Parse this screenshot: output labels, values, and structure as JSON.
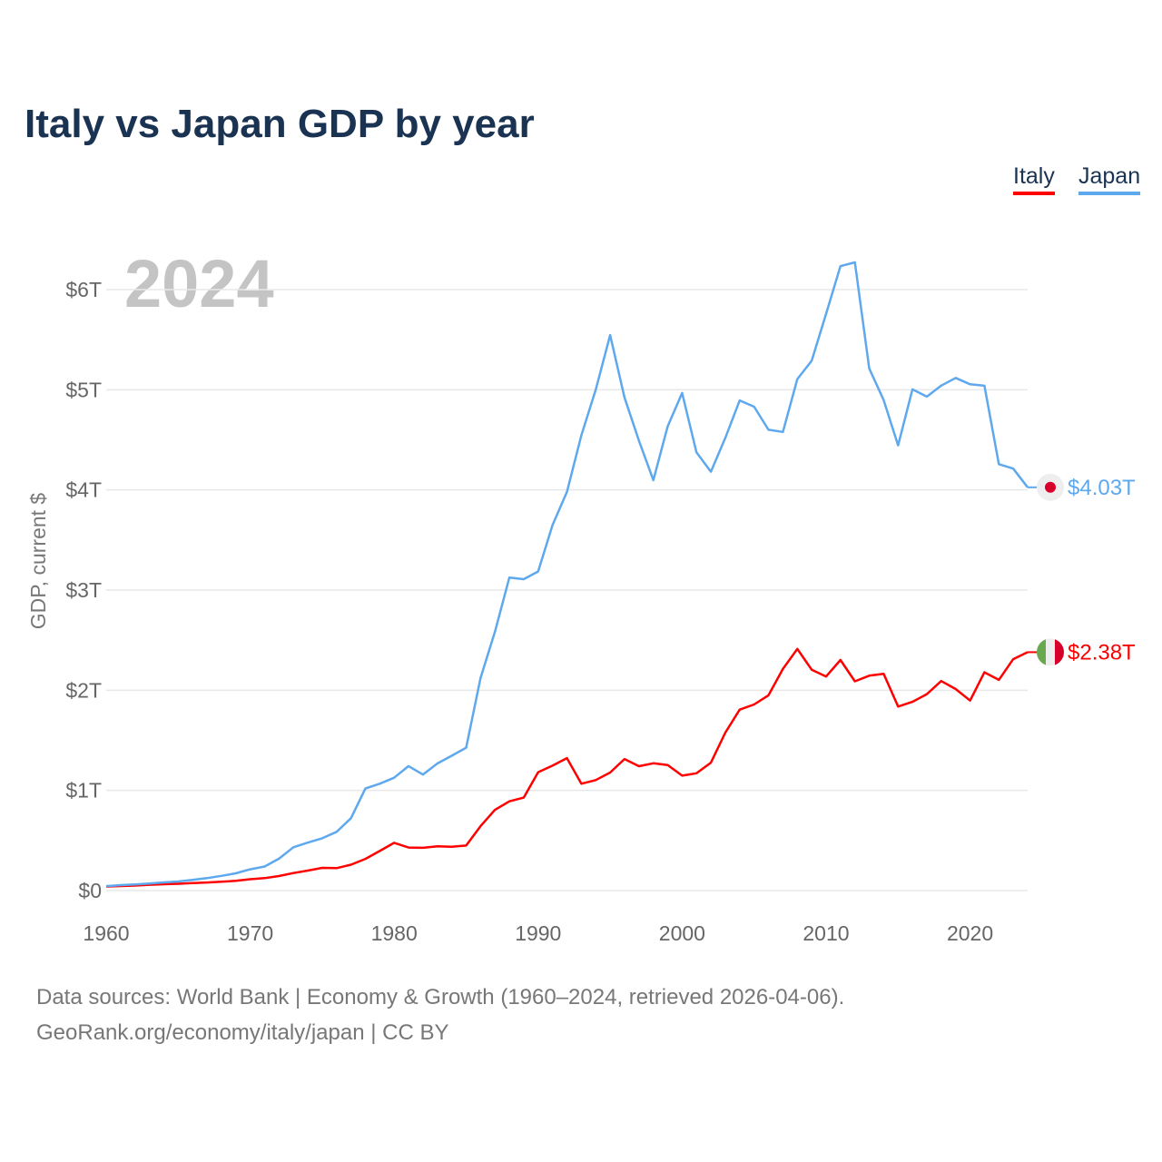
{
  "title": "Italy vs Japan GDP by year",
  "legend": [
    "Italy",
    "Japan"
  ],
  "footer": {
    "line1": "Data sources: World Bank | Economy & Growth (1960–2024, retrieved 2026-04-06).",
    "line2": "GeoRank.org/economy/italy/japan | CC BY"
  },
  "chart_data": {
    "type": "line",
    "title": "Italy vs Japan GDP by year",
    "year_label": "2024",
    "xlabel": "",
    "ylabel": "GDP, current $",
    "xlim": [
      1960,
      2024
    ],
    "ylim": [
      0,
      6
    ],
    "x_ticks": [
      1960,
      1970,
      1980,
      1990,
      2000,
      2010,
      2020
    ],
    "y_ticks": [
      0,
      1,
      2,
      3,
      4,
      5,
      6
    ],
    "y_tick_labels": [
      "$0",
      "$1T",
      "$2T",
      "$3T",
      "$4T",
      "$5T",
      "$6T"
    ],
    "grid": true,
    "legend_position": "top-right",
    "x_start": 1960,
    "series": [
      {
        "name": "Italy",
        "color": "#ff0000",
        "end_label": "$2.38T",
        "marker": "italy-flag",
        "values": [
          0.04,
          0.045,
          0.05,
          0.058,
          0.063,
          0.068,
          0.074,
          0.081,
          0.088,
          0.097,
          0.113,
          0.124,
          0.145,
          0.175,
          0.199,
          0.227,
          0.224,
          0.258,
          0.316,
          0.395,
          0.477,
          0.43,
          0.427,
          0.442,
          0.437,
          0.45,
          0.643,
          0.806,
          0.891,
          0.928,
          1.182,
          1.247,
          1.322,
          1.067,
          1.103,
          1.178,
          1.313,
          1.242,
          1.271,
          1.253,
          1.147,
          1.171,
          1.277,
          1.577,
          1.806,
          1.858,
          1.95,
          2.212,
          2.413,
          2.205,
          2.137,
          2.302,
          2.089,
          2.145,
          2.164,
          1.837,
          1.884,
          1.961,
          2.092,
          2.012,
          1.897,
          2.179,
          2.104,
          2.31,
          2.38
        ]
      },
      {
        "name": "Japan",
        "color": "#5ea8ee",
        "end_label": "$4.03T",
        "marker": "japan-flag",
        "values": [
          0.044,
          0.054,
          0.061,
          0.07,
          0.082,
          0.091,
          0.106,
          0.124,
          0.147,
          0.172,
          0.212,
          0.24,
          0.318,
          0.432,
          0.479,
          0.522,
          0.586,
          0.722,
          1.019,
          1.067,
          1.127,
          1.243,
          1.158,
          1.269,
          1.346,
          1.427,
          2.121,
          2.584,
          3.125,
          3.109,
          3.186,
          3.648,
          3.98,
          4.545,
          4.999,
          5.546,
          4.923,
          4.492,
          4.098,
          4.635,
          4.968,
          4.375,
          4.182,
          4.52,
          4.893,
          4.831,
          4.601,
          4.579,
          5.106,
          5.289,
          5.759,
          6.234,
          6.272,
          5.212,
          4.897,
          4.445,
          5.004,
          4.931,
          5.041,
          5.118,
          5.055,
          5.04,
          4.257,
          4.213,
          4.026
        ]
      }
    ]
  }
}
